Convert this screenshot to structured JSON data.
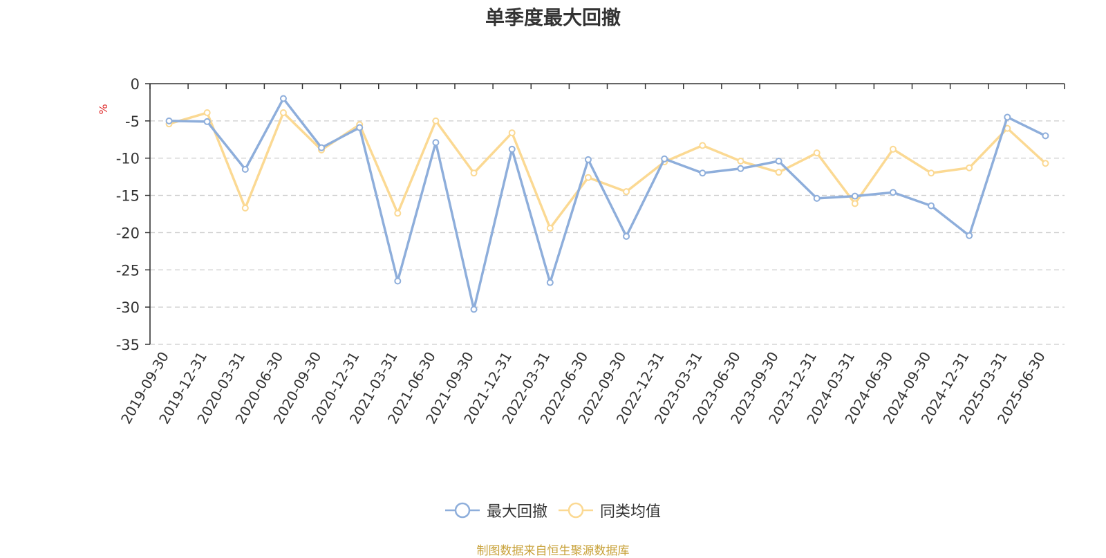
{
  "chart_data": {
    "type": "line",
    "title": "单季度最大回撤",
    "ylabel": "%",
    "ylim": [
      -35,
      0
    ],
    "yticks": [
      0,
      -5,
      -10,
      -15,
      -20,
      -25,
      -30,
      -35
    ],
    "grid": true,
    "legend_position": "bottom",
    "categories": [
      "2019-09-30",
      "2019-12-31",
      "2020-03-31",
      "2020-06-30",
      "2020-09-30",
      "2020-12-31",
      "2021-03-31",
      "2021-06-30",
      "2021-09-30",
      "2021-12-31",
      "2022-03-31",
      "2022-06-30",
      "2022-09-30",
      "2022-12-31",
      "2023-03-31",
      "2023-06-30",
      "2023-09-30",
      "2023-12-31",
      "2024-03-31",
      "2024-06-30",
      "2024-09-30",
      "2024-12-31",
      "2025-03-31",
      "2025-06-30"
    ],
    "series": [
      {
        "name": "最大回撤",
        "color": "#8eaedb",
        "values": [
          -5.0,
          -5.1,
          -11.5,
          -2.0,
          -8.6,
          -5.9,
          -26.5,
          -7.9,
          -30.3,
          -8.8,
          -26.7,
          -10.2,
          -20.5,
          -10.1,
          -12.0,
          -11.4,
          -10.4,
          -15.4,
          -15.1,
          -14.6,
          -16.4,
          -20.4,
          -4.5,
          -7.0
        ]
      },
      {
        "name": "同类均值",
        "color": "#fbd993",
        "values": [
          -5.4,
          -3.9,
          -16.7,
          -3.9,
          -8.9,
          -5.5,
          -17.4,
          -5.0,
          -12.0,
          -6.6,
          -19.4,
          -12.6,
          -14.5,
          -10.5,
          -8.3,
          -10.4,
          -11.9,
          -9.3,
          -16.1,
          -8.8,
          -12.0,
          -11.3,
          -6.0,
          -10.7
        ]
      }
    ]
  },
  "source_text": "制图数据来自恒生聚源数据库"
}
